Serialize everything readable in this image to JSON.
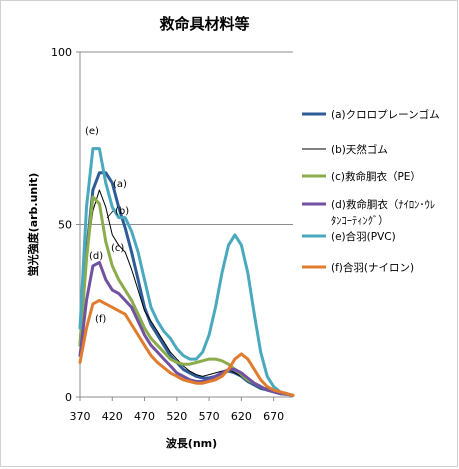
{
  "chart_data": {
    "type": "line",
    "title": "救命具材料等",
    "xlabel": "波長(nm)",
    "ylabel": "蛍光強度(arb.unit)",
    "xlim": [
      370,
      700
    ],
    "ylim": [
      0,
      100
    ],
    "xticks": [
      "370",
      "420",
      "470",
      "520",
      "570",
      "620",
      "670"
    ],
    "yticks": [
      "0",
      "50",
      "100"
    ],
    "grid": true,
    "legend_position": "right",
    "series": [
      {
        "name": "(a)クロロプレーンゴム",
        "legend_lines": [
          "(a)クロロプレーンゴム"
        ],
        "tag": "(a)",
        "color": "#2e5c97",
        "x": [
          370,
          380,
          390,
          400,
          410,
          420,
          430,
          440,
          450,
          460,
          470,
          480,
          490,
          500,
          510,
          520,
          530,
          540,
          550,
          560,
          570,
          580,
          590,
          600,
          610,
          620,
          630,
          640,
          650,
          660,
          670,
          680,
          690,
          700
        ],
        "y": [
          15,
          42,
          60,
          65,
          65,
          62,
          55,
          49,
          42,
          34,
          26,
          21,
          18,
          15,
          12,
          10,
          8,
          7,
          6,
          5.5,
          5.5,
          6,
          7,
          7.5,
          7,
          6,
          4.5,
          3.5,
          2.5,
          2,
          1.5,
          1,
          0.8,
          0.5
        ]
      },
      {
        "name": "(b)天然ゴム",
        "legend_lines": [
          "(b)天然ゴム"
        ],
        "tag": "(b)",
        "color": "#000000",
        "x": [
          370,
          380,
          390,
          400,
          410,
          420,
          430,
          440,
          450,
          460,
          470,
          480,
          490,
          500,
          510,
          520,
          530,
          540,
          550,
          560,
          570,
          580,
          590,
          600,
          610,
          620,
          630,
          640,
          650,
          660,
          670,
          680,
          690,
          700
        ],
        "y": [
          15,
          40,
          54,
          60,
          55,
          47,
          44,
          42,
          37,
          31,
          25,
          22,
          19,
          16,
          13,
          11,
          9,
          7.5,
          6.5,
          6,
          6.5,
          7,
          7.5,
          8,
          7,
          6,
          5,
          4,
          3,
          2.5,
          2,
          1.5,
          1,
          0.8
        ]
      },
      {
        "name": "(c)救命胴衣(PE)",
        "legend_lines": [
          "(c)救命胴衣（PE）"
        ],
        "tag": "(c)",
        "color": "#8bac4a",
        "x": [
          370,
          380,
          390,
          400,
          410,
          420,
          430,
          440,
          450,
          460,
          470,
          480,
          490,
          500,
          510,
          520,
          530,
          540,
          550,
          560,
          570,
          580,
          590,
          600,
          610,
          620,
          630,
          640,
          650,
          660,
          670,
          680,
          690,
          700
        ],
        "y": [
          15,
          40,
          58,
          56,
          45,
          38,
          34,
          31,
          28,
          24,
          20,
          17,
          15,
          13,
          11,
          10,
          9.5,
          9.5,
          10,
          10.5,
          11,
          11,
          10.5,
          9.5,
          8,
          6.5,
          5,
          4,
          3,
          2,
          1.5,
          1,
          0.8,
          0.5
        ]
      },
      {
        "name": "(d)救命胴衣(ナイロン・ウレタンコーティング)",
        "legend_lines": [
          "(d)救命胴衣（ﾅｲﾛﾝ･ｳﾚ",
          "ﾀﾝｺｰﾃｨﾝｸﾞ）"
        ],
        "tag": "(d)",
        "color": "#7052a0",
        "x": [
          370,
          380,
          390,
          400,
          410,
          420,
          430,
          440,
          450,
          460,
          470,
          480,
          490,
          500,
          510,
          520,
          530,
          540,
          550,
          560,
          570,
          580,
          590,
          600,
          610,
          620,
          630,
          640,
          650,
          660,
          670,
          680,
          690,
          700
        ],
        "y": [
          12,
          28,
          38,
          39,
          34,
          31,
          30,
          28,
          26,
          22,
          18,
          15,
          13,
          11,
          9,
          7,
          6,
          5,
          4.5,
          4.5,
          5,
          6,
          7,
          8,
          8,
          7,
          5.5,
          4,
          3,
          2,
          1.5,
          1,
          0.8,
          0.5
        ]
      },
      {
        "name": "(e)合羽(PVC)",
        "legend_lines": [
          "(e)合羽(PVC)"
        ],
        "tag": "(e)",
        "color": "#4aa8bf",
        "x": [
          370,
          380,
          390,
          400,
          410,
          420,
          430,
          440,
          450,
          460,
          470,
          480,
          490,
          500,
          510,
          520,
          530,
          540,
          550,
          560,
          570,
          580,
          590,
          600,
          610,
          620,
          630,
          640,
          650,
          660,
          670,
          680,
          690,
          700
        ],
        "y": [
          20,
          55,
          72,
          72,
          62,
          55,
          52,
          52,
          48,
          42,
          34,
          26,
          22,
          19,
          17,
          14,
          12,
          11,
          11,
          13,
          18,
          26,
          36,
          44,
          47,
          44,
          36,
          24,
          13,
          6,
          3,
          1.5,
          1,
          0.5
        ]
      },
      {
        "name": "(f)合羽(ナイロン)",
        "legend_lines": [
          "(f)合羽(ナイロン)"
        ],
        "tag": "(f)",
        "color": "#e07c2e",
        "x": [
          370,
          380,
          390,
          400,
          410,
          420,
          430,
          440,
          450,
          460,
          470,
          480,
          490,
          500,
          510,
          520,
          530,
          540,
          550,
          560,
          570,
          580,
          590,
          600,
          610,
          620,
          630,
          640,
          650,
          660,
          670,
          680,
          690,
          700
        ],
        "y": [
          10,
          20,
          27,
          28,
          27,
          26,
          25,
          24,
          21,
          18,
          15,
          12,
          10,
          8.5,
          7,
          6,
          5,
          4.5,
          4,
          4,
          4.5,
          5,
          6,
          8,
          11,
          12.5,
          11,
          8,
          5,
          3,
          2,
          1.5,
          1,
          0.5
        ]
      }
    ],
    "annotations": [
      {
        "text": "(a)",
        "series": "(a)"
      },
      {
        "text": "(b)",
        "series": "(b)"
      },
      {
        "text": "(c)",
        "series": "(c)"
      },
      {
        "text": "(d)",
        "series": "(d)"
      },
      {
        "text": "(e)",
        "series": "(e)"
      },
      {
        "text": "(f)",
        "series": "(f)"
      }
    ]
  }
}
